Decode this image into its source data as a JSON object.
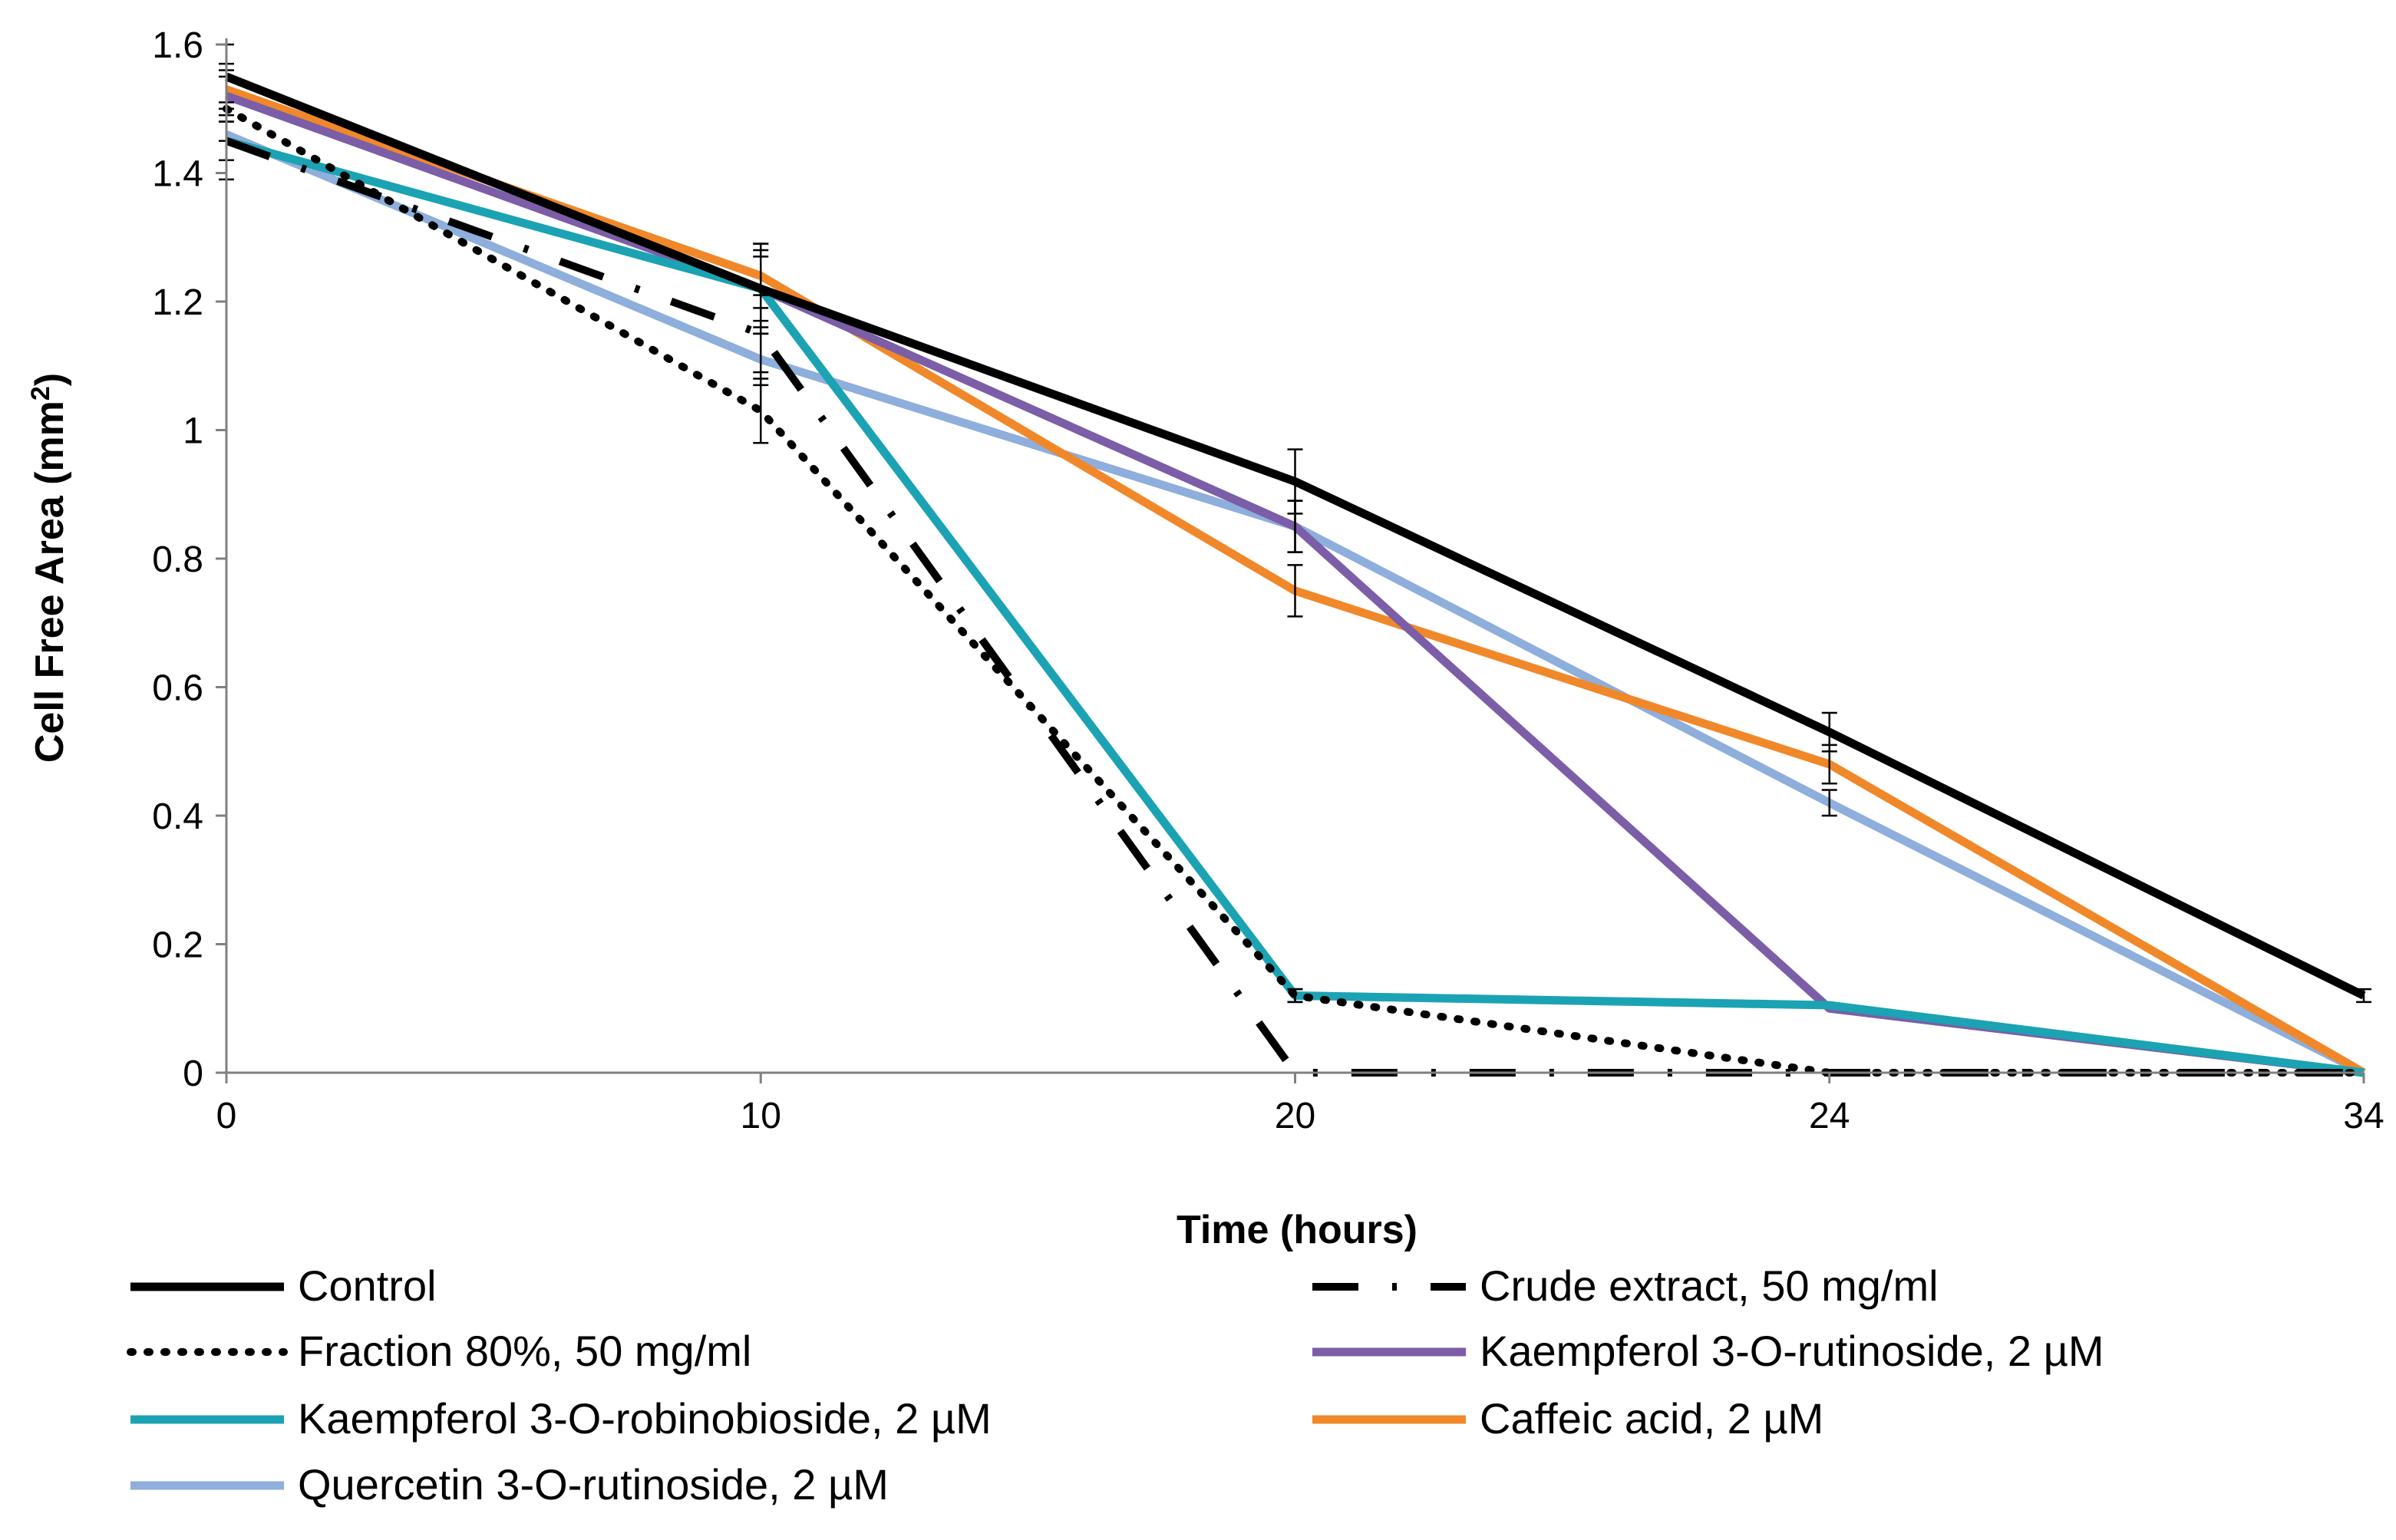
{
  "chart_data": {
    "type": "line",
    "title": "",
    "xlabel": "Time (hours)",
    "ylabel_main": "Cell Free Area (mm",
    "ylabel_sup": "2",
    "ylabel_close": ")",
    "categories": [
      "0",
      "10",
      "20",
      "24",
      "34"
    ],
    "ylim": [
      0,
      1.6
    ],
    "yticks": [
      "0",
      "0.2",
      "0.4",
      "0.6",
      "0.8",
      "1",
      "1.2",
      "1.4",
      "1.6"
    ],
    "series": [
      {
        "name": "Control",
        "color": "#000000",
        "style": "solid",
        "values": [
          1.55,
          1.22,
          0.92,
          0.53,
          0.12
        ],
        "errors": [
          0.05,
          0.07,
          0.05,
          0.03,
          0.01
        ]
      },
      {
        "name": "Crude extract, 50 mg/ml",
        "color": "#000000",
        "style": "dashdot",
        "values": [
          1.45,
          1.15,
          0.0,
          0.0,
          0.0
        ],
        "errors": [
          0.06,
          0.06,
          0.0,
          0.0,
          0.0
        ]
      },
      {
        "name": "Fraction 80%, 50 mg/ml",
        "color": "#000000",
        "style": "dotted",
        "values": [
          1.5,
          1.03,
          0.12,
          0.0,
          0.0
        ],
        "errors": [
          0.05,
          0.05,
          0.01,
          0.0,
          0.0
        ]
      },
      {
        "name": "Kaempferol 3-O-rutinoside, 2 µM",
        "color": "#7b5ea7",
        "style": "solid",
        "values": [
          1.52,
          1.22,
          0.85,
          0.1,
          0.0
        ],
        "errors": [
          0.04,
          0.06,
          0.04,
          0.0,
          0.0
        ]
      },
      {
        "name": "Kaempferol 3-O-robinobioside, 2 µM",
        "color": "#1ba3b3",
        "style": "solid",
        "values": [
          1.45,
          1.22,
          0.12,
          0.105,
          0.0
        ],
        "errors": [
          0.03,
          0.05,
          0.01,
          0.0,
          0.0
        ]
      },
      {
        "name": "Caffeic acid, 2 µM",
        "color": "#f0882a",
        "style": "solid",
        "values": [
          1.53,
          1.24,
          0.75,
          0.48,
          0.0
        ],
        "errors": [
          0.04,
          0.05,
          0.04,
          0.03,
          0.0
        ]
      },
      {
        "name": "Quercetin 3-O-rutinoside, 2 µM",
        "color": "#8eaedc",
        "style": "solid",
        "values": [
          1.46,
          1.11,
          0.85,
          0.42,
          0.0
        ],
        "errors": [
          0.04,
          0.04,
          0.04,
          0.02,
          0.0
        ]
      }
    ],
    "legend_position": "bottom"
  }
}
